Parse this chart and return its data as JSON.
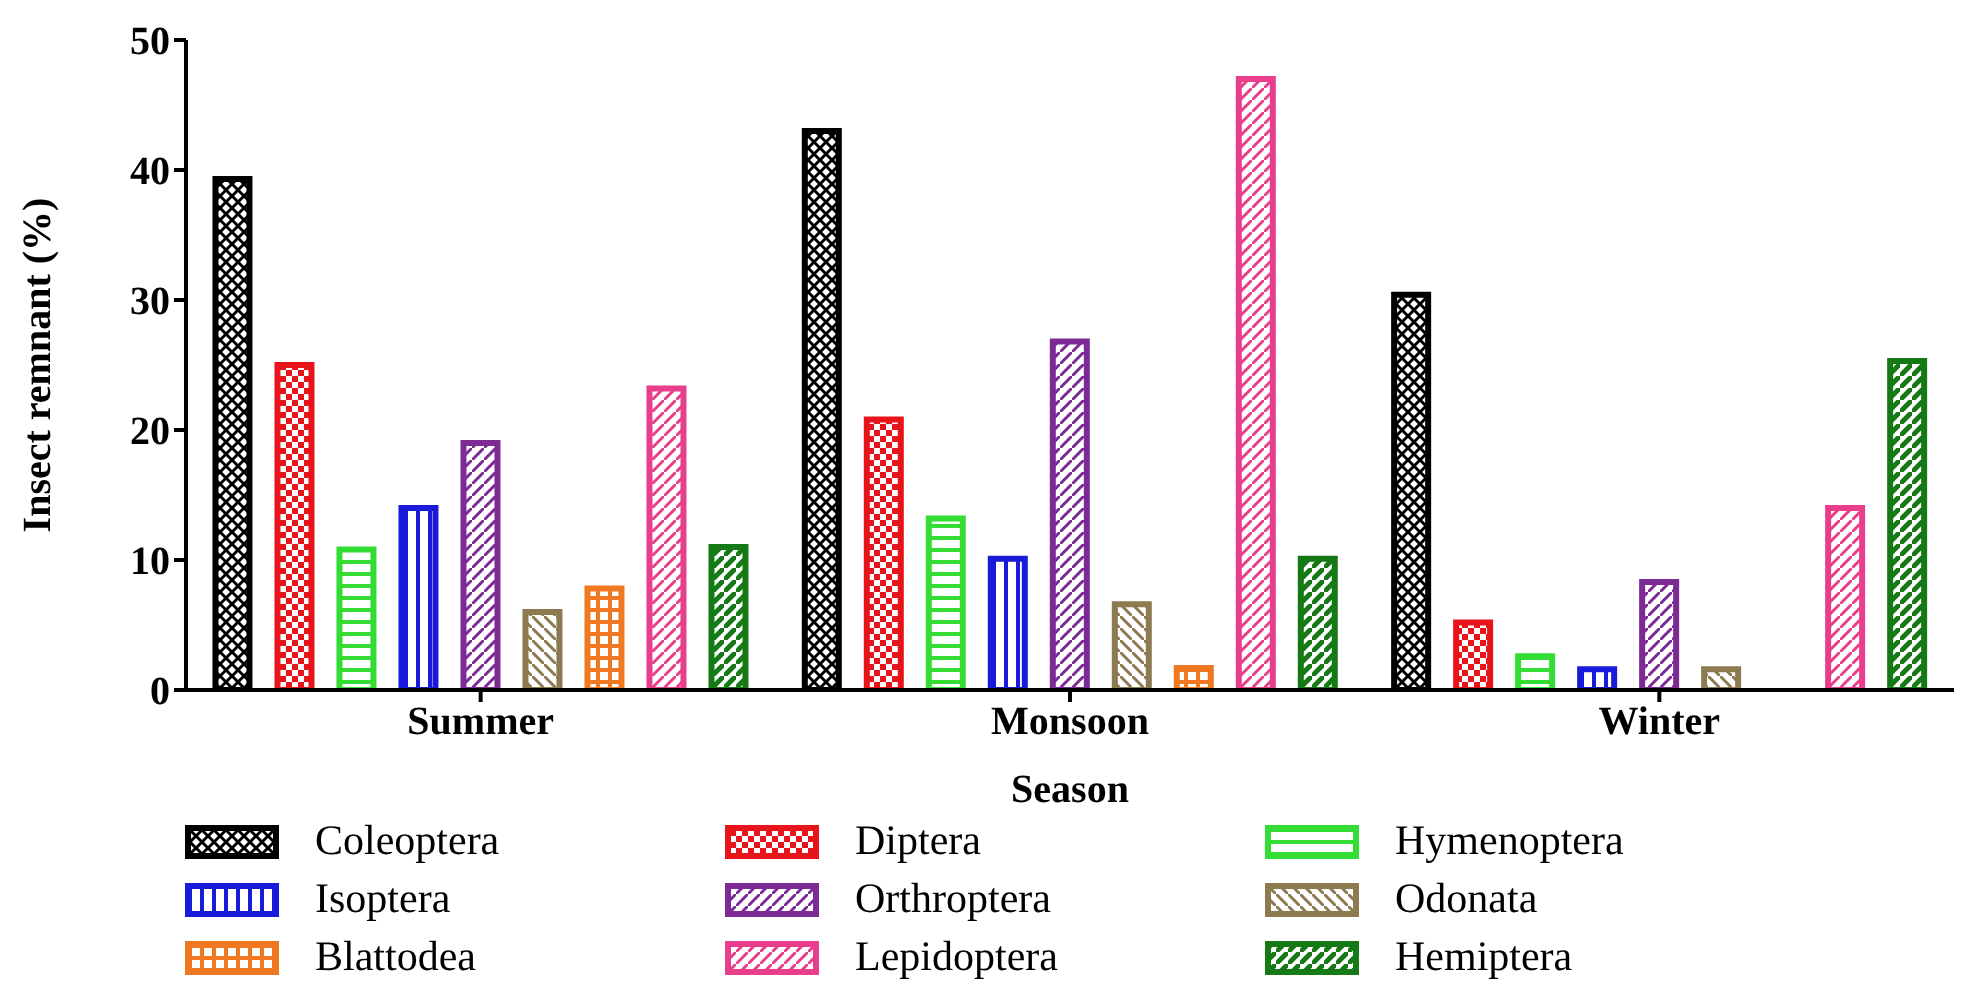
{
  "chart_data": {
    "type": "bar",
    "xlabel": "Season",
    "ylabel": "Insect remnant (%)",
    "categories": [
      "Summer",
      "Monsoon",
      "Winter"
    ],
    "series": [
      {
        "name": "Coleoptera",
        "color": "#000000",
        "values": [
          39.3,
          43,
          30.4
        ]
      },
      {
        "name": "Diptera",
        "color": "#e8141b",
        "values": [
          25,
          20.8,
          5.2
        ]
      },
      {
        "name": "Hymenoptera",
        "color": "#33dd33",
        "values": [
          10.8,
          13.2,
          2.6
        ]
      },
      {
        "name": "Isoptera",
        "color": "#1a1adb",
        "values": [
          14,
          10.1,
          1.6
        ]
      },
      {
        "name": "Orthroptera",
        "color": "#7b2a96",
        "values": [
          19,
          26.8,
          8.3
        ]
      },
      {
        "name": "Odonata",
        "color": "#8c7a50",
        "values": [
          6,
          6.6,
          1.6
        ]
      },
      {
        "name": "Blattodea",
        "color": "#f07820",
        "values": [
          7.8,
          1.7,
          0
        ]
      },
      {
        "name": "Lepidoptera",
        "color": "#e83e8c",
        "values": [
          23.2,
          47,
          14
        ]
      },
      {
        "name": "Hemiptera",
        "color": "#157a15",
        "values": [
          11,
          10.1,
          25.3
        ]
      }
    ],
    "ylim": [
      0,
      50
    ],
    "yticks": [
      0,
      10,
      20,
      30,
      40,
      50
    ],
    "legend": "bottom"
  }
}
